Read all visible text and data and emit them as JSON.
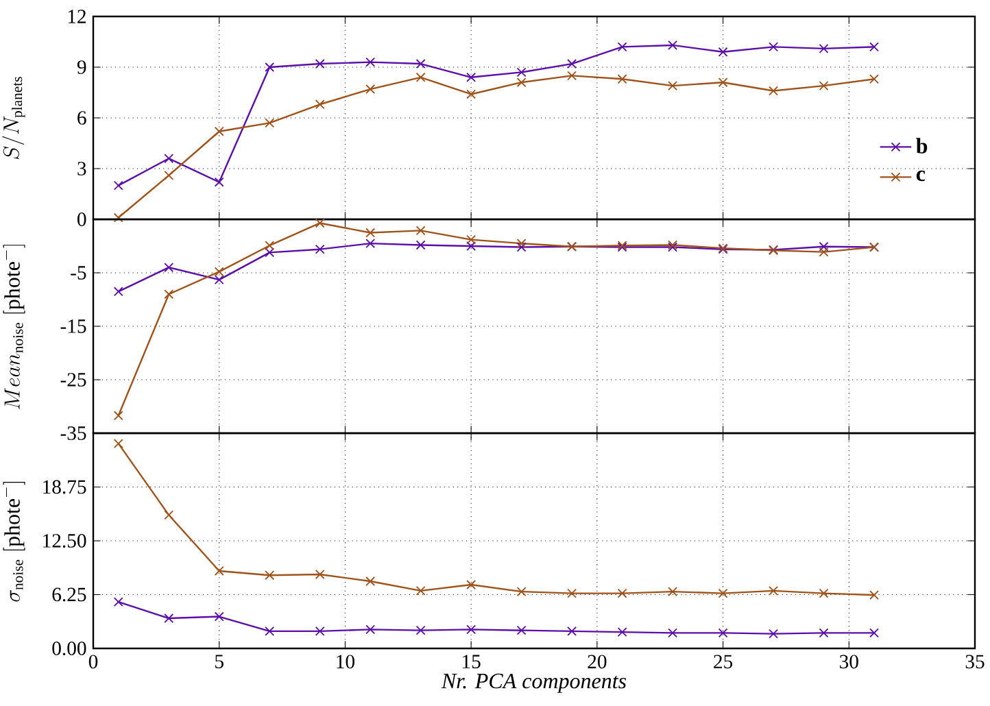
{
  "chart_data": [
    {
      "type": "line",
      "ylabel": "S/N_{\\mathrm{planets}}",
      "x": [
        1,
        3,
        5,
        7,
        9,
        11,
        13,
        15,
        17,
        19,
        21,
        23,
        25,
        27,
        29,
        31
      ],
      "xlim": [
        0,
        35
      ],
      "xticks": [
        0,
        5,
        10,
        15,
        20,
        25,
        30,
        35
      ],
      "ylim": [
        0,
        12
      ],
      "yticks": [
        0,
        3,
        6,
        9,
        12
      ],
      "tick_labels": "y",
      "grid": true,
      "legend": "bottom right",
      "marker": "cross",
      "line_style": "solid",
      "series": [
        {
          "name": "b",
          "color": "#5b0fa8",
          "values": [
            2,
            3.6,
            2.2,
            9.0,
            9.2,
            9.3,
            9.2,
            8.4,
            8.7,
            9.2,
            10.2,
            10.3,
            9.9,
            10.2,
            10.1,
            10.2
          ]
        },
        {
          "name": "c",
          "color": "#a0521b",
          "values": [
            0.1,
            2.6,
            5.2,
            5.7,
            6.8,
            7.7,
            8.4,
            7.4,
            8.1,
            8.5,
            8.3,
            7.9,
            8.1,
            7.6,
            7.9,
            8.3
          ]
        }
      ]
    },
    {
      "type": "line",
      "ylabel": "Mean_{\\mathrm{noise}}\\ [\\mathrm{phote}^{-}]",
      "x": [
        1,
        3,
        5,
        7,
        9,
        11,
        13,
        15,
        17,
        19,
        21,
        23,
        25,
        27,
        29,
        31
      ],
      "xlim": [
        0,
        35
      ],
      "xticks": [
        0,
        5,
        10,
        15,
        20,
        25,
        30,
        35
      ],
      "ylim": [
        -35,
        5
      ],
      "yticks": [
        -35,
        -25,
        -15,
        -5,
        {
          "value": 5,
          "label": null
        }
      ],
      "tick_labels": "y",
      "grid": true,
      "marker": "cross",
      "line_style": "solid",
      "series": [
        {
          "color": "#5b0fa8",
          "values": [
            -8.5,
            -4,
            -6.3,
            -1.2,
            -0.6,
            0.5,
            0.2,
            0,
            -0.2,
            -0.1,
            -0.2,
            -0.2,
            -0.6,
            -0.7,
            -0.1,
            -0.2
          ]
        },
        {
          "color": "#a0521b",
          "values": [
            -31.7,
            -9,
            -4.8,
            0.1,
            4.3,
            2.5,
            2.9,
            1.2,
            0.5,
            -0.1,
            0.1,
            0.2,
            -0.4,
            -0.8,
            -1.1,
            -0.2
          ]
        }
      ]
    },
    {
      "type": "line",
      "ylabel": "\\sigma_{\\mathrm{noise}}\\ [\\mathrm{phote}^{-}]",
      "xlabel": "Nr. PCA components",
      "x": [
        1,
        3,
        5,
        7,
        9,
        11,
        13,
        15,
        17,
        19,
        21,
        23,
        25,
        27,
        29,
        31
      ],
      "xlim": [
        0,
        35
      ],
      "xticks": [
        0,
        5,
        10,
        15,
        20,
        25,
        30,
        35
      ],
      "ylim": [
        0,
        25
      ],
      "yticks": [
        {
          "value": 0,
          "label": "0.00"
        },
        6.25,
        {
          "value": 12.5,
          "label": "12.50"
        },
        18.75,
        {
          "value": 25,
          "label": null
        }
      ],
      "grid": true,
      "marker": "cross",
      "line_style": "solid",
      "series": [
        {
          "color": "#5b0fa8",
          "values": [
            5.4,
            3.5,
            3.7,
            2.0,
            2.0,
            2.2,
            2.1,
            2.2,
            2.1,
            2.0,
            1.9,
            1.8,
            1.8,
            1.7,
            1.8,
            1.8
          ]
        },
        {
          "color": "#a0521b",
          "values": [
            23.8,
            15.5,
            9.0,
            8.5,
            8.6,
            7.8,
            6.7,
            7.4,
            6.6,
            6.4,
            6.4,
            6.6,
            6.4,
            6.7,
            6.4,
            6.2
          ]
        }
      ]
    }
  ]
}
